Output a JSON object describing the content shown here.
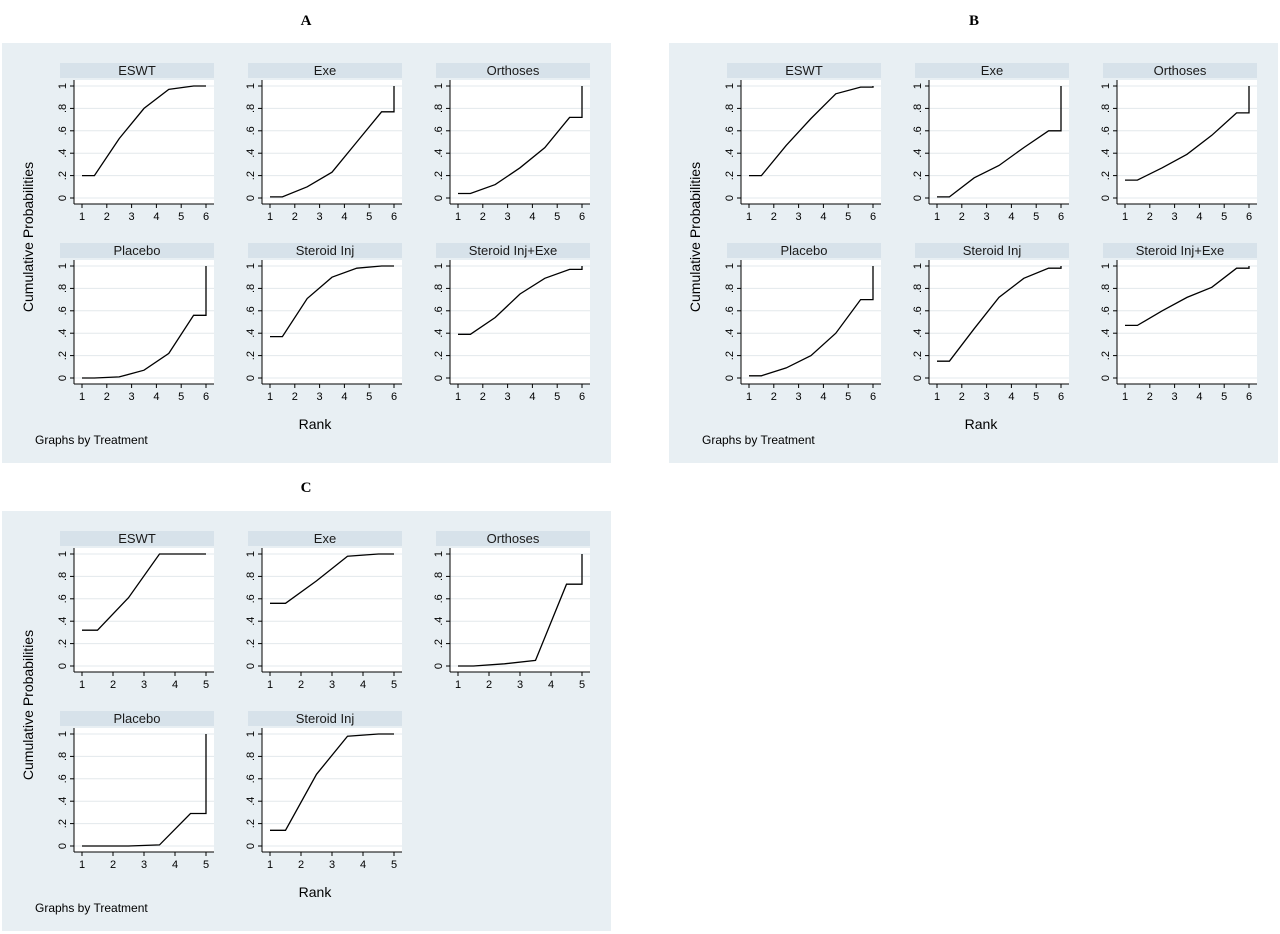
{
  "chart_data": [
    {
      "letter": "A",
      "type": "line",
      "ylabel": "Cumulative Probabilities",
      "xlabel": "Rank",
      "note": "Graphs by Treatment",
      "x_ticks": [
        1,
        2,
        3,
        4,
        5,
        6
      ],
      "y_ticks": [
        "0",
        ".2",
        ".4",
        ".6",
        ".8",
        "1"
      ],
      "ylim": [
        0,
        1
      ],
      "xlim": [
        1,
        6
      ],
      "series": [
        {
          "name": "ESWT",
          "values": [
            0.2,
            0.53,
            0.8,
            0.97,
            1.0,
            1.0
          ]
        },
        {
          "name": "Exe",
          "values": [
            0.01,
            0.1,
            0.23,
            0.5,
            0.77,
            1.0
          ]
        },
        {
          "name": "Orthoses",
          "values": [
            0.04,
            0.12,
            0.27,
            0.45,
            0.72,
            1.0
          ]
        },
        {
          "name": "Placebo",
          "values": [
            0.0,
            0.01,
            0.07,
            0.22,
            0.56,
            1.0
          ]
        },
        {
          "name": "Steroid Inj",
          "values": [
            0.37,
            0.71,
            0.9,
            0.98,
            1.0,
            1.0
          ]
        },
        {
          "name": "Steroid Inj+Exe",
          "values": [
            0.39,
            0.54,
            0.75,
            0.89,
            0.97,
            1.0
          ]
        }
      ]
    },
    {
      "letter": "B",
      "type": "line",
      "ylabel": "Cumulative Probabilities",
      "xlabel": "Rank",
      "note": "Graphs by Treatment",
      "x_ticks": [
        1,
        2,
        3,
        4,
        5,
        6
      ],
      "y_ticks": [
        "0",
        ".2",
        ".4",
        ".6",
        ".8",
        "1"
      ],
      "ylim": [
        0,
        1
      ],
      "xlim": [
        1,
        6
      ],
      "series": [
        {
          "name": "ESWT",
          "values": [
            0.2,
            0.47,
            0.71,
            0.93,
            0.99,
            1.0
          ]
        },
        {
          "name": "Exe",
          "values": [
            0.01,
            0.18,
            0.29,
            0.45,
            0.6,
            1.0
          ]
        },
        {
          "name": "Orthoses",
          "values": [
            0.16,
            0.27,
            0.39,
            0.56,
            0.76,
            1.0
          ]
        },
        {
          "name": "Placebo",
          "values": [
            0.02,
            0.09,
            0.2,
            0.4,
            0.7,
            1.0
          ]
        },
        {
          "name": "Steroid Inj",
          "values": [
            0.15,
            0.44,
            0.72,
            0.89,
            0.98,
            1.0
          ]
        },
        {
          "name": "Steroid Inj+Exe",
          "values": [
            0.47,
            0.6,
            0.72,
            0.81,
            0.98,
            1.0
          ]
        }
      ]
    },
    {
      "letter": "C",
      "type": "line",
      "ylabel": "Cumulative Probabilities",
      "xlabel": "Rank",
      "note": "Graphs by Treatment",
      "x_ticks": [
        1,
        2,
        3,
        4,
        5
      ],
      "y_ticks": [
        "0",
        ".2",
        ".4",
        ".6",
        ".8",
        "1"
      ],
      "ylim": [
        0,
        1
      ],
      "xlim": [
        1,
        5
      ],
      "series": [
        {
          "name": "ESWT",
          "values": [
            0.32,
            0.61,
            1.0,
            1.0,
            1.0
          ]
        },
        {
          "name": "Exe",
          "values": [
            0.56,
            0.76,
            0.98,
            1.0,
            1.0
          ]
        },
        {
          "name": "Orthoses",
          "values": [
            0.0,
            0.02,
            0.05,
            0.73,
            1.0
          ]
        },
        {
          "name": "Placebo",
          "values": [
            0.0,
            0.0,
            0.01,
            0.29,
            1.0
          ]
        },
        {
          "name": "Steroid Inj",
          "values": [
            0.14,
            0.64,
            0.98,
            1.0,
            1.0
          ]
        }
      ]
    }
  ]
}
